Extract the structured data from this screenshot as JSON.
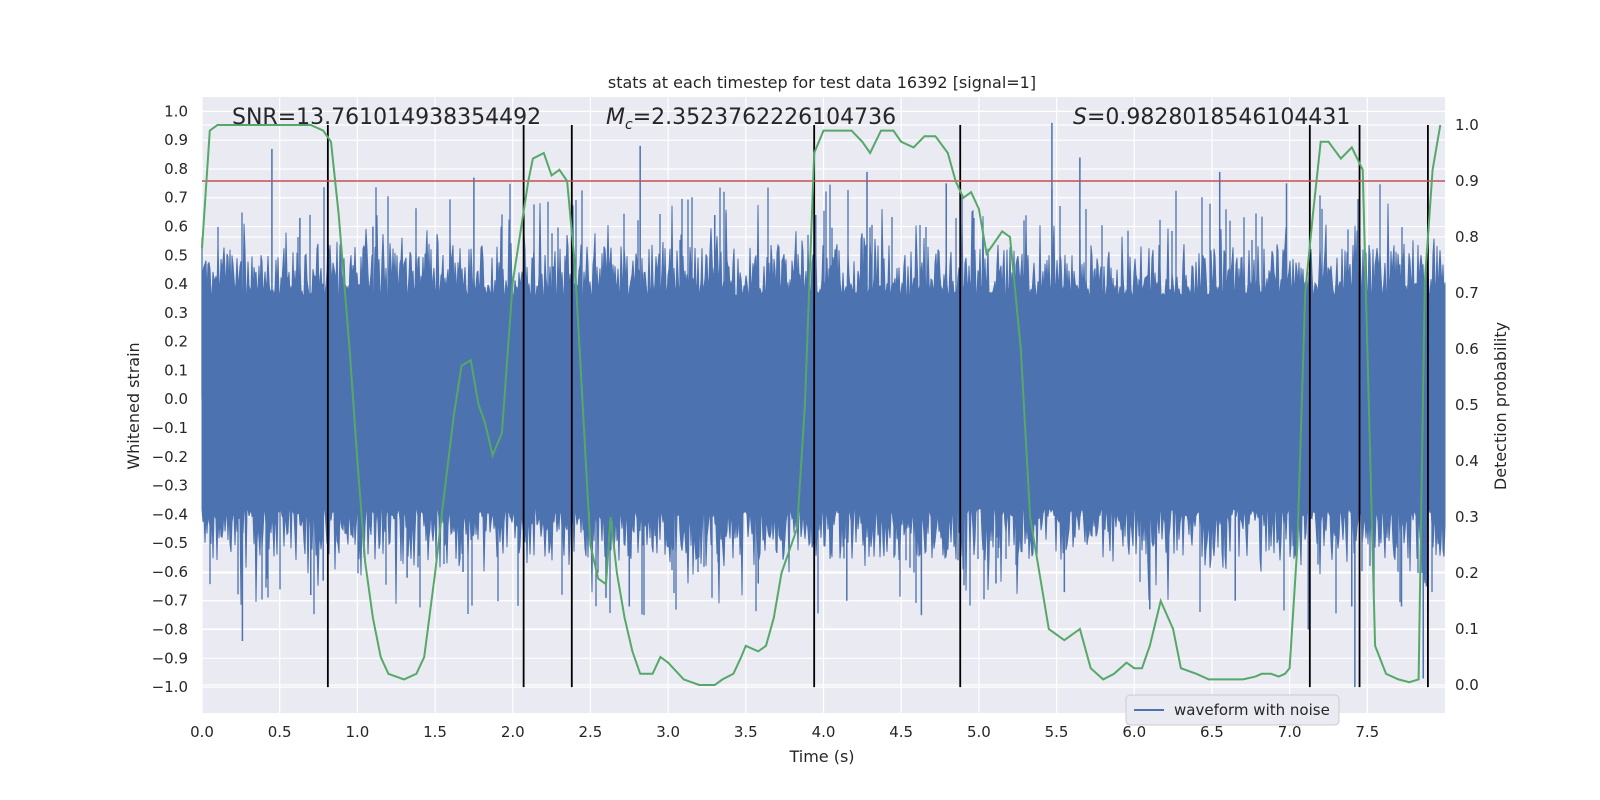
{
  "chart_data": {
    "type": "line",
    "title": "stats at each timestep for test data 16392 [signal=1]",
    "xlabel": "Time (s)",
    "ylabel_left": "Whitened strain",
    "ylabel_right": "Detection probability",
    "xlim": [
      0.0,
      8.0
    ],
    "ylim_left": [
      -1.09,
      1.05
    ],
    "ylim_right": [
      -0.05,
      1.05
    ],
    "x_ticks": [
      0.0,
      0.5,
      1.0,
      1.5,
      2.0,
      2.5,
      3.0,
      3.5,
      4.0,
      4.5,
      5.0,
      5.5,
      6.0,
      6.5,
      7.0,
      7.5
    ],
    "x_tick_labels": [
      "0.0",
      "0.5",
      "1.0",
      "1.5",
      "2.0",
      "2.5",
      "3.0",
      "3.5",
      "4.0",
      "4.5",
      "5.0",
      "5.5",
      "6.0",
      "6.5",
      "7.0",
      "7.5"
    ],
    "y_left_ticks": [
      -1.0,
      -0.9,
      -0.8,
      -0.7,
      -0.6,
      -0.5,
      -0.4,
      -0.3,
      -0.2,
      -0.1,
      0.0,
      0.1,
      0.2,
      0.3,
      0.4,
      0.5,
      0.6,
      0.7,
      0.8,
      0.9,
      1.0
    ],
    "y_left_tick_labels": [
      "−1.0",
      "−0.9",
      "−0.8",
      "−0.7",
      "−0.6",
      "−0.5",
      "−0.4",
      "−0.3",
      "−0.2",
      "−0.1",
      "0.0",
      "0.1",
      "0.2",
      "0.3",
      "0.4",
      "0.5",
      "0.6",
      "0.7",
      "0.8",
      "0.9",
      "1.0"
    ],
    "y_right_ticks": [
      0.0,
      0.1,
      0.2,
      0.3,
      0.4,
      0.5,
      0.6,
      0.7,
      0.8,
      0.9,
      1.0
    ],
    "y_right_tick_labels": [
      "0.0",
      "0.1",
      "0.2",
      "0.3",
      "0.4",
      "0.5",
      "0.6",
      "0.7",
      "0.8",
      "0.9",
      "1.0"
    ],
    "annotations": {
      "snr": "SNR=13.761014938354492",
      "mc_symbol": "M",
      "mc_sub": "c",
      "mc_value": "=2.3523762226104736",
      "s_symbol": "S",
      "s_value": "=0.9828018546104431"
    },
    "legend": {
      "label": "waveform with noise",
      "location": "lower right"
    },
    "threshold": {
      "value": 0.9,
      "axis": "right",
      "color": "#c44e52"
    },
    "vertical_lines": [
      0.81,
      2.07,
      2.38,
      3.94,
      4.88,
      7.13,
      7.45,
      7.89
    ],
    "waveform": {
      "name": "waveform with noise",
      "color": "#4c72b0",
      "duration_s": 8.0,
      "spikes": [
        [
          0.45,
          0.87
        ],
        [
          0.26,
          -0.84
        ],
        [
          0.63,
          0.63
        ],
        [
          0.7,
          -0.68
        ],
        [
          0.78,
          -0.63
        ],
        [
          1.1,
          0.6
        ],
        [
          1.32,
          -0.62
        ],
        [
          1.75,
          0.77
        ],
        [
          1.68,
          -0.6
        ],
        [
          2.38,
          0.57
        ],
        [
          2.6,
          -0.69
        ],
        [
          2.75,
          -0.72
        ],
        [
          2.82,
          0.88
        ],
        [
          3.3,
          0.64
        ],
        [
          3.58,
          -0.64
        ],
        [
          3.95,
          0.64
        ],
        [
          4.15,
          -0.7
        ],
        [
          4.28,
          0.79
        ],
        [
          4.63,
          -0.75
        ],
        [
          4.79,
          0.75
        ],
        [
          5.11,
          -0.64
        ],
        [
          5.47,
          0.96
        ],
        [
          5.55,
          -0.67
        ],
        [
          5.65,
          0.84
        ],
        [
          6.1,
          -0.73
        ],
        [
          6.55,
          0.79
        ],
        [
          6.65,
          -0.7
        ],
        [
          6.98,
          0.75
        ],
        [
          7.12,
          -0.8
        ],
        [
          7.4,
          -0.72
        ],
        [
          7.42,
          -1.0
        ],
        [
          7.72,
          -0.72
        ],
        [
          7.86,
          -0.97
        ],
        [
          7.88,
          -0.65
        ]
      ]
    },
    "detection_probability": {
      "name": "Detection probability",
      "color": "#55a868",
      "t": [
        0.0,
        0.05,
        0.1,
        0.2,
        0.5,
        0.7,
        0.78,
        0.83,
        0.88,
        0.95,
        1.0,
        1.05,
        1.1,
        1.15,
        1.2,
        1.3,
        1.38,
        1.43,
        1.5,
        1.55,
        1.62,
        1.67,
        1.73,
        1.78,
        1.82,
        1.87,
        1.93,
        2.0,
        2.1,
        2.13,
        2.2,
        2.25,
        2.3,
        2.35,
        2.4,
        2.45,
        2.5,
        2.55,
        2.6,
        2.63,
        2.67,
        2.72,
        2.77,
        2.82,
        2.9,
        2.95,
        3.0,
        3.1,
        3.2,
        3.3,
        3.35,
        3.42,
        3.47,
        3.5,
        3.58,
        3.63,
        3.68,
        3.73,
        3.78,
        3.83,
        3.88,
        3.94,
        4.0,
        4.05,
        4.1,
        4.18,
        4.25,
        4.3,
        4.37,
        4.45,
        4.5,
        4.58,
        4.65,
        4.72,
        4.8,
        4.85,
        4.9,
        4.95,
        5.0,
        5.05,
        5.15,
        5.2,
        5.27,
        5.33,
        5.45,
        5.55,
        5.65,
        5.72,
        5.8,
        5.87,
        5.95,
        6.0,
        6.05,
        6.1,
        6.17,
        6.25,
        6.3,
        6.4,
        6.48,
        6.55,
        6.62,
        6.7,
        6.78,
        6.82,
        6.88,
        6.93,
        6.97,
        7.0,
        7.05,
        7.1,
        7.15,
        7.2,
        7.25,
        7.33,
        7.4,
        7.47,
        7.55,
        7.62,
        7.7,
        7.77,
        7.83,
        7.87,
        7.92,
        7.97
      ],
      "p": [
        0.78,
        0.99,
        1.0,
        1.0,
        1.0,
        1.0,
        0.99,
        0.97,
        0.84,
        0.6,
        0.4,
        0.22,
        0.12,
        0.05,
        0.02,
        0.01,
        0.02,
        0.05,
        0.2,
        0.32,
        0.48,
        0.57,
        0.58,
        0.5,
        0.47,
        0.41,
        0.45,
        0.72,
        0.9,
        0.94,
        0.95,
        0.91,
        0.92,
        0.9,
        0.75,
        0.5,
        0.25,
        0.19,
        0.18,
        0.3,
        0.2,
        0.12,
        0.06,
        0.02,
        0.02,
        0.05,
        0.04,
        0.01,
        0.0,
        0.0,
        0.01,
        0.02,
        0.05,
        0.07,
        0.06,
        0.07,
        0.12,
        0.2,
        0.24,
        0.28,
        0.5,
        0.95,
        0.99,
        0.99,
        0.99,
        0.99,
        0.97,
        0.95,
        0.99,
        0.99,
        0.97,
        0.96,
        0.98,
        0.98,
        0.95,
        0.9,
        0.87,
        0.88,
        0.85,
        0.77,
        0.81,
        0.8,
        0.6,
        0.3,
        0.1,
        0.08,
        0.1,
        0.03,
        0.01,
        0.02,
        0.04,
        0.03,
        0.03,
        0.07,
        0.15,
        0.1,
        0.03,
        0.02,
        0.01,
        0.01,
        0.01,
        0.01,
        0.015,
        0.02,
        0.02,
        0.015,
        0.02,
        0.03,
        0.25,
        0.7,
        0.84,
        0.97,
        0.97,
        0.94,
        0.96,
        0.92,
        0.07,
        0.02,
        0.01,
        0.005,
        0.01,
        0.72,
        0.92,
        1.0
      ]
    }
  }
}
